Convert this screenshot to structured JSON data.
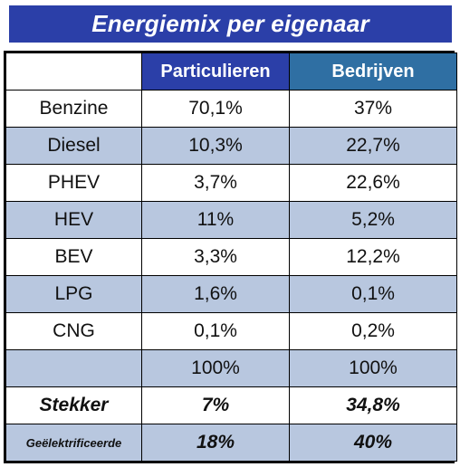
{
  "title": "Energiemix per eigenaar",
  "header": {
    "col0": "",
    "col1": "Particulieren",
    "col2": "Bedrijven"
  },
  "rows": [
    {
      "label": "Benzine",
      "particulieren": "70,1%",
      "bedrijven": "37%"
    },
    {
      "label": "Diesel",
      "particulieren": "10,3%",
      "bedrijven": "22,7%"
    },
    {
      "label": "PHEV",
      "particulieren": "3,7%",
      "bedrijven": "22,6%"
    },
    {
      "label": "HEV",
      "particulieren": "11%",
      "bedrijven": "5,2%"
    },
    {
      "label": "BEV",
      "particulieren": "3,3%",
      "bedrijven": "12,2%"
    },
    {
      "label": "LPG",
      "particulieren": "1,6%",
      "bedrijven": "0,1%"
    },
    {
      "label": "CNG",
      "particulieren": "0,1%",
      "bedrijven": "0,2%"
    },
    {
      "label": "",
      "particulieren": "100%",
      "bedrijven": "100%"
    },
    {
      "label": "Stekker",
      "particulieren": "7%",
      "bedrijven": "34,8%"
    },
    {
      "label": "Geëlektrificeerde",
      "particulieren": "18%",
      "bedrijven": "40%"
    }
  ],
  "colors": {
    "title_bg": "#2b3fa8",
    "header_particulieren_bg": "#2b3fa8",
    "header_bedrijven_bg": "#2f6fa3",
    "alt_row_bg": "#b8c7df"
  }
}
